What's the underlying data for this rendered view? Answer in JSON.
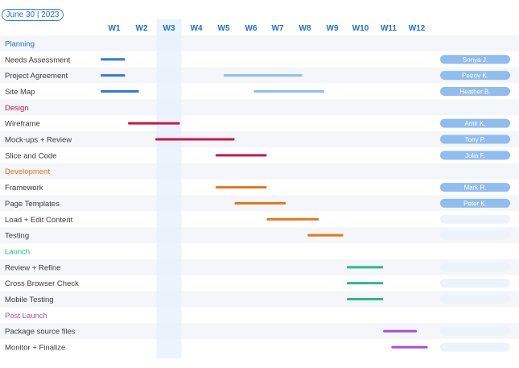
{
  "header": {
    "date_label": "June 30 | 2023"
  },
  "chart_data": {
    "type": "gantt",
    "weeks": [
      "W1",
      "W2",
      "W3",
      "W4",
      "W5",
      "W6",
      "W7",
      "W8",
      "W9",
      "W10",
      "W11",
      "W12"
    ],
    "highlighted_week": "W3",
    "sections": [
      {
        "name": "Planning",
        "color": "#1f6fd9",
        "bar_color": "#2f7be0",
        "tasks": [
          {
            "name": "Needs Assessment",
            "start": 1.0,
            "end": 1.9,
            "assignee": "Sonya J.",
            "bar_color": "#2f7be0"
          },
          {
            "name": "Project Agreement",
            "start": 1.0,
            "end": 1.9,
            "start2": 5.5,
            "end2": 8.4,
            "assignee": "Petrov K.",
            "bar_color": "#2f7be0",
            "bar_color2": "#8fbdef"
          },
          {
            "name": "Site Map",
            "start": 1.0,
            "end": 2.4,
            "start2": 6.6,
            "end2": 9.2,
            "assignee": "Heather B.",
            "bar_color": "#2f7be0",
            "bar_color2": "#8fbdef"
          }
        ]
      },
      {
        "name": "Design",
        "color": "#c8174b",
        "tasks": [
          {
            "name": "Wireframe",
            "start": 2.0,
            "end": 3.9,
            "assignee": "Amir K.",
            "bar_color": "#c8174b"
          },
          {
            "name": "Mock-ups + Review",
            "start": 3.0,
            "end": 5.9,
            "assignee": "Tony P.",
            "bar_color": "#c8174b"
          },
          {
            "name": "Slice and Code",
            "start": 5.2,
            "end": 7.1,
            "assignee": "Julia F.",
            "bar_color": "#c8174b"
          }
        ]
      },
      {
        "name": "Development",
        "color": "#e8731c",
        "tasks": [
          {
            "name": "Framework",
            "start": 5.2,
            "end": 7.1,
            "assignee": "Mark R.",
            "bar_color": "#e8731c"
          },
          {
            "name": "Page Templates",
            "start": 5.9,
            "end": 7.8,
            "assignee": "Peter K.",
            "bar_color": "#e8731c"
          },
          {
            "name": "Load + Edit Content",
            "start": 7.1,
            "end": 9.0,
            "assignee": "",
            "bar_color": "#e8731c"
          },
          {
            "name": "Testing",
            "start": 8.6,
            "end": 9.9,
            "assignee": "",
            "bar_color": "#e8731c"
          }
        ]
      },
      {
        "name": "Launch",
        "color": "#22b57a",
        "tasks": [
          {
            "name": "Review + Refine",
            "start": 10.0,
            "end": 11.3,
            "assignee": "",
            "bar_color": "#2dbb83"
          },
          {
            "name": "Cross Browser Check",
            "start": 10.0,
            "end": 11.3,
            "assignee": "",
            "bar_color": "#2dbb83"
          },
          {
            "name": "Mobile Testing",
            "start": 10.0,
            "end": 11.3,
            "assignee": "",
            "bar_color": "#2dbb83"
          }
        ]
      },
      {
        "name": "Post Launch",
        "color": "#a64fd6",
        "tasks": [
          {
            "name": "Package source files",
            "start": 11.3,
            "end": 12.5,
            "assignee": "",
            "bar_color": "#a64fd6"
          },
          {
            "name": "Monitor + Finalize",
            "start": 11.6,
            "end": 12.9,
            "assignee": "",
            "bar_color": "#a64fd6"
          }
        ]
      }
    ]
  },
  "colors": {
    "accent": "#1f6fd9",
    "stripe": "#f4f6f9",
    "highlight_col": "#e8f1fc",
    "assignee_fill": "#8fbdef",
    "assignee_empty": "#edf3fb"
  }
}
